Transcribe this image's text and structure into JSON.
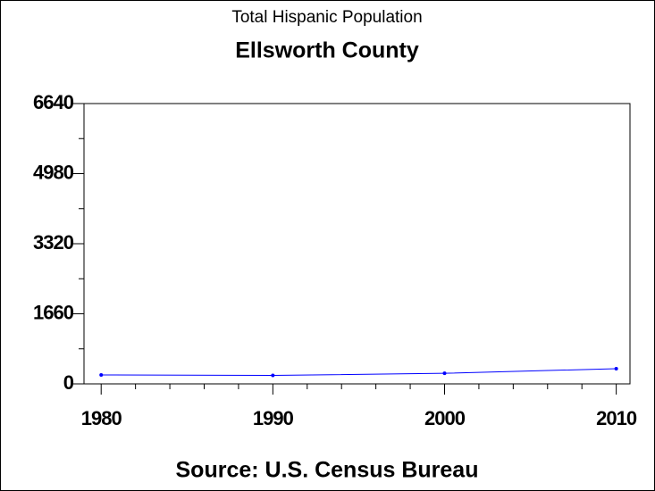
{
  "chart_data": {
    "type": "line",
    "title": "Total Hispanic Population",
    "subtitle": "Ellsworth County",
    "footnote": "Source: U.S. Census Bureau",
    "x": [
      1980,
      1990,
      2000,
      2010
    ],
    "series": [
      {
        "name": "Hispanic Population",
        "color": "#0000ff",
        "values": [
          211,
          200,
          250,
          360
        ]
      }
    ],
    "xlim": [
      1979,
      2010.8
    ],
    "xticks": [
      1980,
      1990,
      2000,
      2010
    ],
    "xminorticks": [
      1982,
      1984,
      1986,
      1988,
      1992,
      1994,
      1996,
      1998,
      2002,
      2004,
      2006,
      2008
    ],
    "ylim": [
      0,
      6640
    ],
    "yticks": [
      0,
      1660,
      3320,
      4980,
      6640
    ],
    "yminorticks": [
      830,
      2490,
      4150,
      5810
    ],
    "grid": false
  }
}
